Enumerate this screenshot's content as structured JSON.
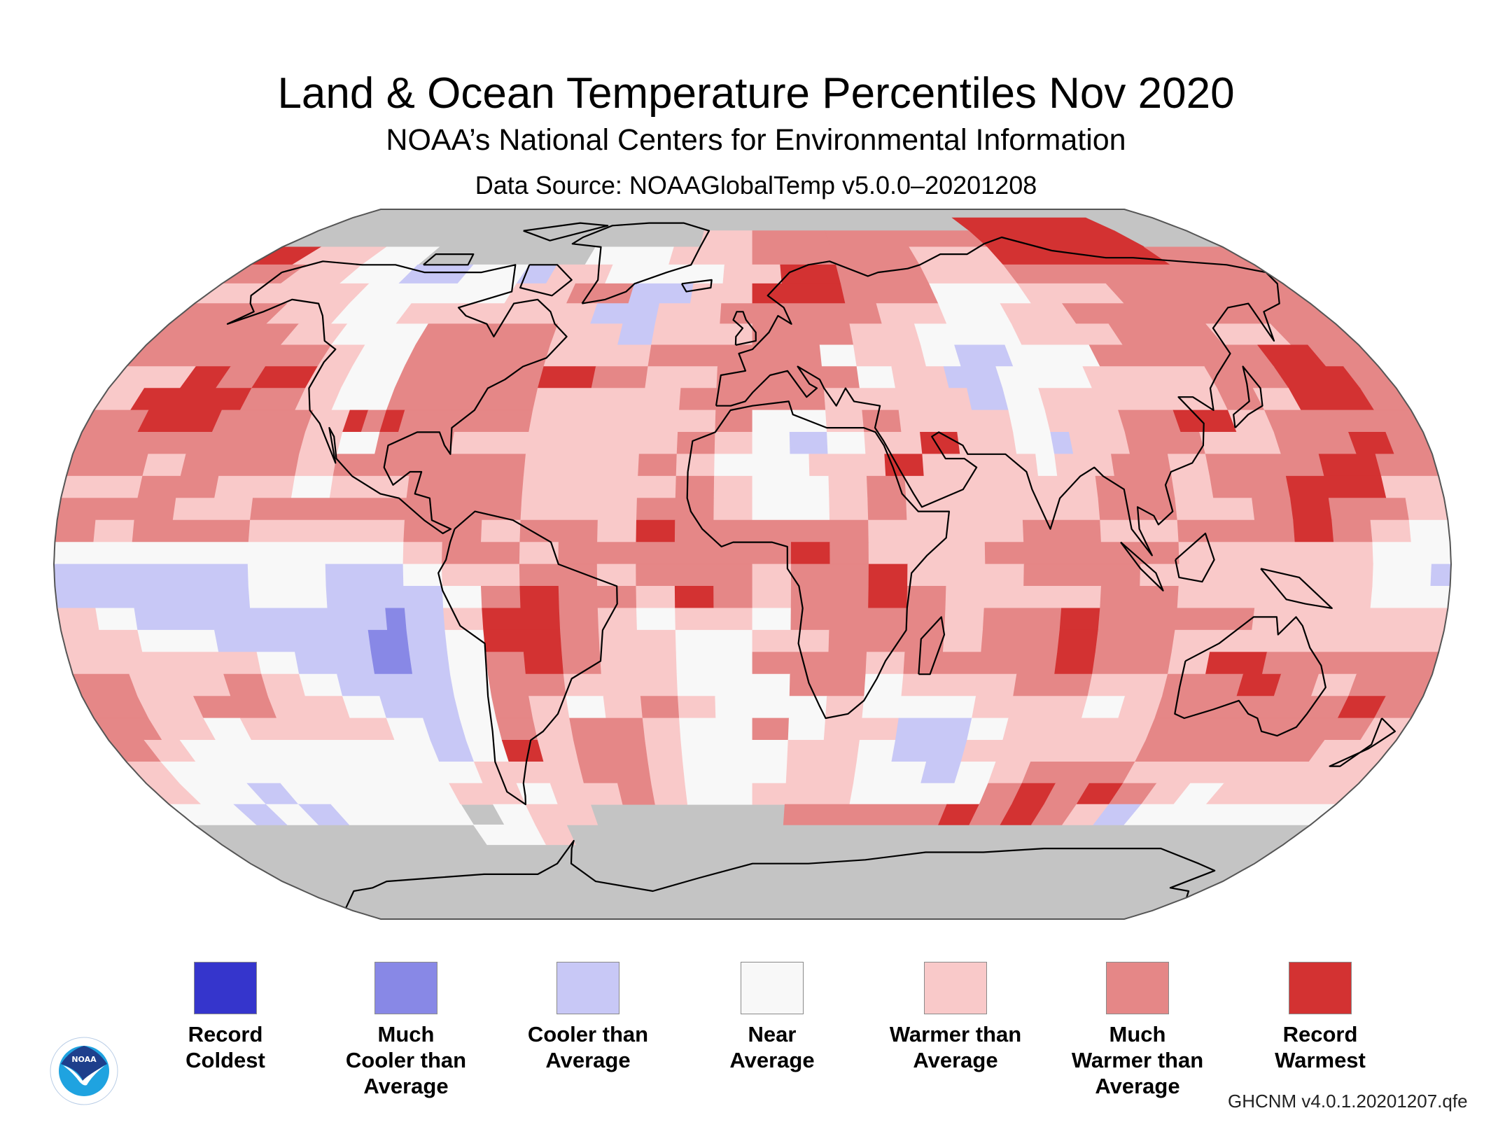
{
  "header": {
    "title": "Land & Ocean Temperature Percentiles Nov 2020",
    "subtitle": "NOAA’s National Centers for Environmental Information",
    "data_source": "Data Source: NOAAGlobalTemp v5.0.0–20201208"
  },
  "logo": {
    "icon": "noaa-logo-icon",
    "text": "NOAA"
  },
  "footer": {
    "version_code": "GHCNM v4.0.1.20201207.qfe"
  },
  "colors": {
    "missing": "#c4c4c4",
    "coastline": "#000000",
    "map_border": "#555555"
  },
  "legend": [
    {
      "code": "x",
      "lines": [
        "Record",
        "Coldest"
      ],
      "color": "#3535cc"
    },
    {
      "code": "C",
      "lines": [
        "Much",
        "Cooler than",
        "Average"
      ],
      "color": "#8888e6"
    },
    {
      "code": "c",
      "lines": [
        "Cooler than",
        "Average"
      ],
      "color": "#c8c8f6"
    },
    {
      "code": "w",
      "lines": [
        "Near",
        "Average"
      ],
      "color": "#f8f8f8"
    },
    {
      "code": "1",
      "lines": [
        "Warmer than",
        "Average"
      ],
      "color": "#f9c9c9"
    },
    {
      "code": "2",
      "lines": [
        "Much",
        "Warmer than",
        "Average"
      ],
      "color": "#e58787"
    },
    {
      "code": "3",
      "lines": [
        "Record",
        "Warmest"
      ],
      "color": "#d33232"
    }
  ],
  "chart_data": {
    "type": "heatmap",
    "title": "Land & Ocean Temperature Percentiles Nov 2020",
    "projection": "Robinson",
    "grid_resolution_deg": 5,
    "lat_range": [
      90,
      -90
    ],
    "lon_range": [
      -180,
      180
    ],
    "encoding": "run-length per 5-degree latitude band (north to south), codes: g=missing, x=record coldest, C=much cooler, c=cooler, w=near average, 1=warmer, 2=much warmer, 3=record warmest",
    "rows": [
      "g:72",
      "g:54 3:12 g:6",
      "g:6 g:18 g:8 1:4 2:6 2:12 3:12 g:6",
      "3:3 1:5 w:4 g:12 w:6 1:6 2:12 1:6 3:12 2:6",
      "2:4 1:4 w:4 c:4 w:4 c:2 1:4 w:8 1:4 3:4 2:6 1:6 2:18",
      "1:10 w:10 1:4 2:4 c:4 1:4 3:6 2:6 w:6 1:6 2:12",
      "2:6 1:4 w:4 1:12 c:4 1:4 2:10 1:4 w:4 1:4 2:16",
      "2:8 1:3 w:5 2:8 1:4 c:2 1:6 2:6 1:4 w:6 1:6 2:6 1:4 2:4",
      "2:11 1:2 w:3 2:8 1:6 2:10 w:2 1:4 w:2 c:3 w:5 2:10 3:3 2:3",
      "1:4 3:2 2:2 3:3 1:2 w:3 2:8 3:3 2:3 1:4 2:8 w:2 1:3 c:3 w:5 1:7 2:4 3:4 2:2",
      "1:2 3:6 2:3 1:2 w:3 2:8 1:8 2:8 1:8 c:2 w:2 1:10 2:2 1:2 3:4 2:2",
      "2:3 3:4 2:5 1:2 3:1 2:1 3:1 2:7 1:10 2:2 w:4 1:2 2:2 1:6 w:2 1:4 2:3 3:3 1:2 2:8",
      "2:12 1:2 w:2 2:4 1:12 2:2 1:2 w:2 c:2 w:2 1:3 3:2 1:3 w:2 c:1 1:3 2:4 1:4 2:4 3:2 2:2",
      "2:4 1:2 2:6 1:2 2:10 1:6 2:2 1:2 w:5 1:4 3:2 1:6 w:1 1:3 2:3 1:2 2:6 3:3 2:3",
      "1:4 2:4 1:4 w:2 1:4 2:6 1:8 2:2 1:2 w:4 1:2 2:2 1:10 2:4 1:2 2:4 3:5 1:3",
      "2:6 1:4 2:14 1:6 2:4 1:2 w:4 1:2 2:2 1:10 2:4 1:4 2:2 3:2 2:4 1:2",
      "2:2 1:2 2:6 1:8 2:4 1:2 2:4 1:2 3:2 2:10 1:8 2:4 1:4 2:6 3:2 2:2 1:2 w:2",
      "w:18 1:2 2:4 1:2 2:12 3:2 2:2 1:6 2:10 1:10 w:4",
      "c:10 w:4 c:4 w:2 1:4 2:4 1:2 2:6 1:2 2:4 3:2 1:6 2:6 1:12 w:3 c:1",
      "c:10 w:4 c:6 w:2 2:2 3:2 2:4 1:2 3:2 2:2 1:2 2:4 3:2 2:2 1:8 2:4 1:10 w:4",
      "1:2 w:2 c:13 C:1 c:2 1:2 3:4 2:2 1:2 w:2 1:4 w:2 2:8 1:2 2:4 3:2 2:8 1:10",
      "1:4 w:4 c:8 C:2 c:2 w:2 3:4 2:2 1:4 w:4 1:4 2:6 1:2 2:4 3:2 2:4 1:14",
      "1:10 w:2 c:4 C:2 c:2 w:2 2:2 3:2 2:2 1:4 w:4 2:6 1:2 2:8 3:2 2:4 1:2 3:3 2:9",
      "2:3 1:5 2:2 1:2 w:2 c:6 w:2 2:4 1:6 w:6 2:4 w:2 1:6 2:4 1:4 2:4 3:2 2:2 1:2 2:4",
      "2:3 1:3 2:4 1:4 w:2 c:4 w:2 2:2 1:2 w:2 1:2 2:2 1:2 w:6 1:2 w:6 1:6 w:2 1:2 2:10 3:2 2:2",
      "2:3 1:3 w:2 1:8 w:2 c:2 w:2 2:2 1:2 2:4 1:2 w:4 2:2 w:2 1:4 c:4 w:2 1:8 2:12 1:2",
      "2:2 1:2 w:14 c:2 w:2 3:2 1:2 2:4 1:2 w:6 1:4 w:2 c:4 1:10 2:10 1:4",
      "1:2 w:18 1:6 2:4 1:2 w:6 1:4 w:4 c:2 w:2 1:2 2:6 1:14",
      "1:2 w:4 c:2 w:10 1:4 w:2 1:4 2:2 1:2 w:4 1:6 w:8 2:2 3:2 2:2 3:2 2:2 1:2 w:2 1:8",
      "w:4 c:2 w:2 c:2 w:8 g:2 w:2 1:4 g:12 2:10 3:2 2:2 3:2 2:2 1:2 c:2 w:12",
      "g:18 w:4 1:2 g:48",
      "g:72",
      "g:72",
      "g:72",
      "g:72",
      "g:72"
    ]
  }
}
